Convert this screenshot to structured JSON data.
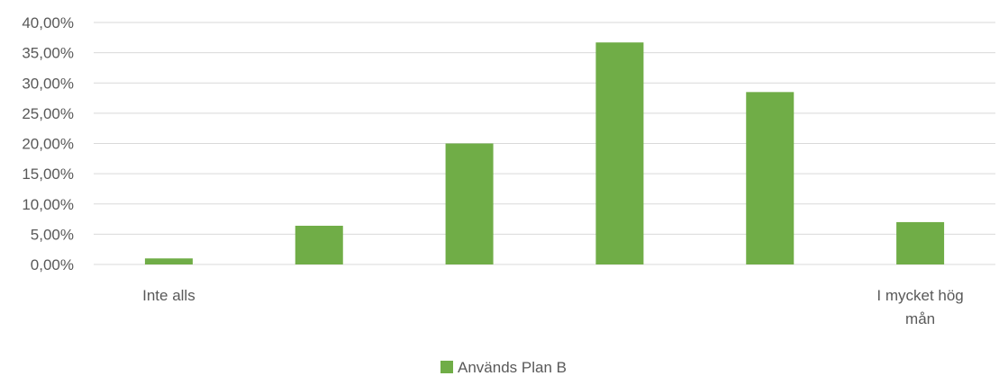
{
  "chart_data": {
    "type": "bar",
    "categories": [
      "Inte alls",
      "",
      "",
      "",
      "",
      "I mycket hög mån"
    ],
    "series": [
      {
        "name": "Används Plan B",
        "values": [
          1.0,
          6.4,
          20.0,
          36.7,
          28.5,
          7.0
        ],
        "color": "#70AD47"
      }
    ],
    "y_ticks": [
      "0,00%",
      "5,00%",
      "10,00%",
      "15,00%",
      "20,00%",
      "25,00%",
      "30,00%",
      "35,00%",
      "40,00%"
    ],
    "ylim": [
      0,
      40
    ],
    "y_unit": "percent",
    "grid": true,
    "legend_position": "bottom",
    "gridline_color": "#d9d9d9",
    "axis_text_color": "#595959"
  }
}
